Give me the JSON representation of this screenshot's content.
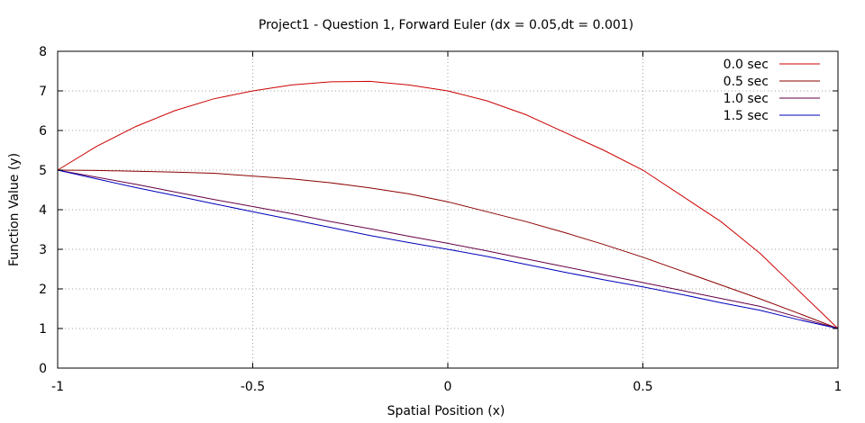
{
  "chart_data": {
    "type": "line",
    "title": "Project1 - Question 1, Forward Euler (dx = 0.05,dt = 0.001)",
    "xlabel": "Spatial Position (x)",
    "ylabel": "Function Value (y)",
    "xlim": [
      -1,
      1
    ],
    "ylim": [
      0,
      8
    ],
    "xticks": [
      -1,
      -0.5,
      0,
      0.5,
      1
    ],
    "xtick_labels": [
      "-1",
      "-0.5",
      "0",
      "0.5",
      "1"
    ],
    "yticks": [
      0,
      1,
      2,
      3,
      4,
      5,
      6,
      7,
      8
    ],
    "ytick_labels": [
      "0",
      "1",
      "2",
      "3",
      "4",
      "5",
      "6",
      "7",
      "8"
    ],
    "grid": true,
    "legend_position": "top-right",
    "series": [
      {
        "name": "0.0 sec",
        "color": "#cc0000",
        "x": [
          -1,
          -0.9,
          -0.8,
          -0.7,
          -0.6,
          -0.5,
          -0.4,
          -0.3,
          -0.2,
          -0.1,
          0,
          0.1,
          0.2,
          0.3,
          0.4,
          0.5,
          0.6,
          0.7,
          0.8,
          0.9,
          1
        ],
        "y": [
          5,
          5.6,
          6.1,
          6.5,
          6.8,
          7.0,
          7.15,
          7.23,
          7.24,
          7.15,
          7.0,
          6.75,
          6.4,
          5.95,
          5.5,
          5.0,
          4.35,
          3.7,
          2.9,
          1.95,
          1.0
        ]
      },
      {
        "name": "0.5 sec",
        "color": "#8b0000",
        "x": [
          -1,
          -0.9,
          -0.8,
          -0.7,
          -0.6,
          -0.5,
          -0.4,
          -0.3,
          -0.2,
          -0.1,
          0,
          0.1,
          0.2,
          0.3,
          0.4,
          0.5,
          0.6,
          0.7,
          0.8,
          0.9,
          1
        ],
        "y": [
          5,
          4.99,
          4.97,
          4.95,
          4.92,
          4.85,
          4.78,
          4.68,
          4.55,
          4.4,
          4.2,
          3.95,
          3.7,
          3.42,
          3.12,
          2.8,
          2.45,
          2.1,
          1.75,
          1.38,
          1.0
        ]
      },
      {
        "name": "1.0 sec",
        "color": "#660044",
        "x": [
          -1,
          -0.9,
          -0.8,
          -0.7,
          -0.6,
          -0.5,
          -0.4,
          -0.3,
          -0.2,
          -0.1,
          0,
          0.1,
          0.2,
          0.3,
          0.4,
          0.5,
          0.6,
          0.7,
          0.8,
          0.9,
          1
        ],
        "y": [
          5,
          4.82,
          4.64,
          4.45,
          4.26,
          4.08,
          3.9,
          3.7,
          3.52,
          3.33,
          3.15,
          2.96,
          2.76,
          2.56,
          2.36,
          2.16,
          1.96,
          1.76,
          1.56,
          1.28,
          1.0
        ]
      },
      {
        "name": "1.5 sec",
        "color": "#0000bb",
        "x": [
          -1,
          -0.9,
          -0.8,
          -0.7,
          -0.6,
          -0.5,
          -0.4,
          -0.3,
          -0.2,
          -0.1,
          0,
          0.1,
          0.2,
          0.3,
          0.4,
          0.5,
          0.6,
          0.7,
          0.8,
          0.9,
          1
        ],
        "y": [
          5,
          4.78,
          4.56,
          4.36,
          4.15,
          3.95,
          3.75,
          3.55,
          3.35,
          3.17,
          3.0,
          2.82,
          2.62,
          2.42,
          2.23,
          2.05,
          1.86,
          1.65,
          1.46,
          1.22,
          1.0
        ]
      }
    ]
  }
}
